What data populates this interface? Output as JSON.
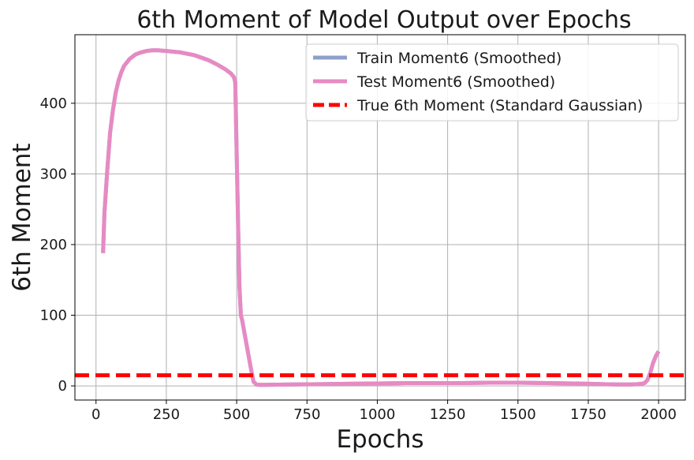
{
  "chart_data": {
    "type": "line",
    "title": "6th Moment of Model Output over Epochs",
    "xlabel": "Epochs",
    "ylabel": "6th Moment",
    "xlim": [
      -75,
      2095
    ],
    "ylim": [
      -20,
      497
    ],
    "xticks": [
      0,
      250,
      500,
      750,
      1000,
      1250,
      1500,
      1750,
      2000
    ],
    "yticks": [
      0,
      100,
      200,
      300,
      400
    ],
    "grid": true,
    "legend_position": "top-right",
    "series": [
      {
        "name": "Train Moment6 (Smoothed)",
        "color": "#8da0cb",
        "style": "solid",
        "x": [
          25,
          30,
          40,
          50,
          60,
          70,
          80,
          90,
          100,
          120,
          140,
          160,
          180,
          200,
          220,
          250,
          300,
          350,
          400,
          430,
          460,
          480,
          490,
          495,
          500,
          505,
          510,
          515,
          520,
          530,
          540,
          550,
          560,
          570,
          580,
          600,
          700,
          800,
          900,
          1000,
          1100,
          1200,
          1300,
          1400,
          1500,
          1600,
          1700,
          1750,
          1800,
          1850,
          1900,
          1925,
          1940,
          1950,
          1960,
          1970,
          1980,
          1990,
          2000
        ],
        "y": [
          188,
          245,
          305,
          358,
          390,
          415,
          432,
          444,
          453,
          463,
          469,
          472,
          474,
          475,
          475,
          474,
          472,
          468,
          461,
          455,
          448,
          442,
          437,
          430,
          330,
          230,
          140,
          100,
          92,
          70,
          48,
          26,
          6,
          2,
          1.5,
          1.5,
          2,
          2.5,
          3,
          3.5,
          4,
          4,
          4,
          4.5,
          4.5,
          4,
          3.5,
          3,
          2.5,
          2,
          2,
          2.5,
          3,
          4,
          8,
          18,
          32,
          42,
          49
        ]
      },
      {
        "name": "Test Moment6 (Smoothed)",
        "color": "#e78ac3",
        "style": "solid",
        "x": [
          25,
          30,
          40,
          50,
          60,
          70,
          80,
          90,
          100,
          120,
          140,
          160,
          180,
          200,
          220,
          250,
          300,
          350,
          400,
          430,
          460,
          480,
          490,
          495,
          500,
          505,
          510,
          515,
          520,
          530,
          540,
          550,
          560,
          570,
          580,
          600,
          700,
          800,
          900,
          1000,
          1100,
          1200,
          1300,
          1400,
          1500,
          1600,
          1700,
          1750,
          1800,
          1850,
          1900,
          1925,
          1940,
          1950,
          1960,
          1970,
          1980,
          1990,
          2000
        ],
        "y": [
          188,
          245,
          305,
          358,
          390,
          415,
          432,
          444,
          453,
          463,
          469,
          472,
          474,
          475,
          475,
          474,
          472,
          468,
          461,
          455,
          448,
          442,
          437,
          430,
          330,
          230,
          140,
          100,
          92,
          70,
          48,
          26,
          6,
          2,
          1.5,
          1.5,
          2,
          2.5,
          3,
          3.5,
          4,
          4,
          4,
          4.5,
          4.5,
          4,
          3.5,
          3,
          2.5,
          2,
          2,
          2.5,
          3,
          4,
          8,
          18,
          32,
          42,
          49
        ]
      },
      {
        "name": "True 6th Moment (Standard Gaussian)",
        "color": "#ff0000",
        "style": "dashed",
        "constant_y": 15
      }
    ]
  }
}
